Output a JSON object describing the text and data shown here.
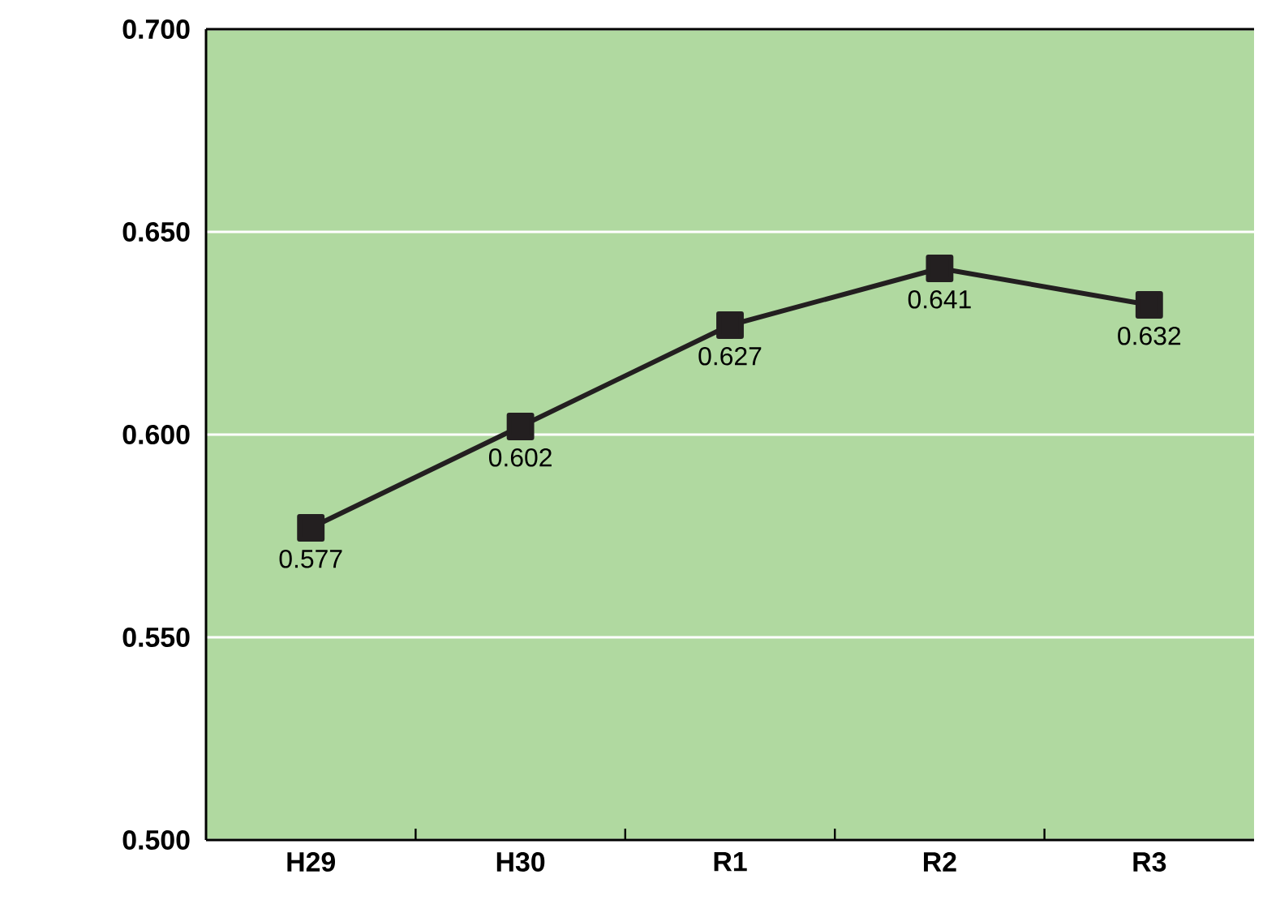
{
  "chart_data": {
    "type": "line",
    "categories": [
      "H29",
      "H30",
      "R1",
      "R2",
      "R3"
    ],
    "series": [
      {
        "color": "#231f20",
        "values": [
          0.577,
          0.602,
          0.627,
          0.641,
          0.632
        ]
      }
    ],
    "ylim": [
      0.5,
      0.7
    ],
    "yticks": [
      {
        "value": 0.5,
        "label": "0.500"
      },
      {
        "value": 0.55,
        "label": "0.550"
      },
      {
        "value": 0.6,
        "label": "0.600"
      },
      {
        "value": 0.65,
        "label": "0.650"
      },
      {
        "value": 0.7,
        "label": "0.700"
      }
    ],
    "grid": "y",
    "marker": "square",
    "line_style": "solid",
    "data_labels": true
  }
}
